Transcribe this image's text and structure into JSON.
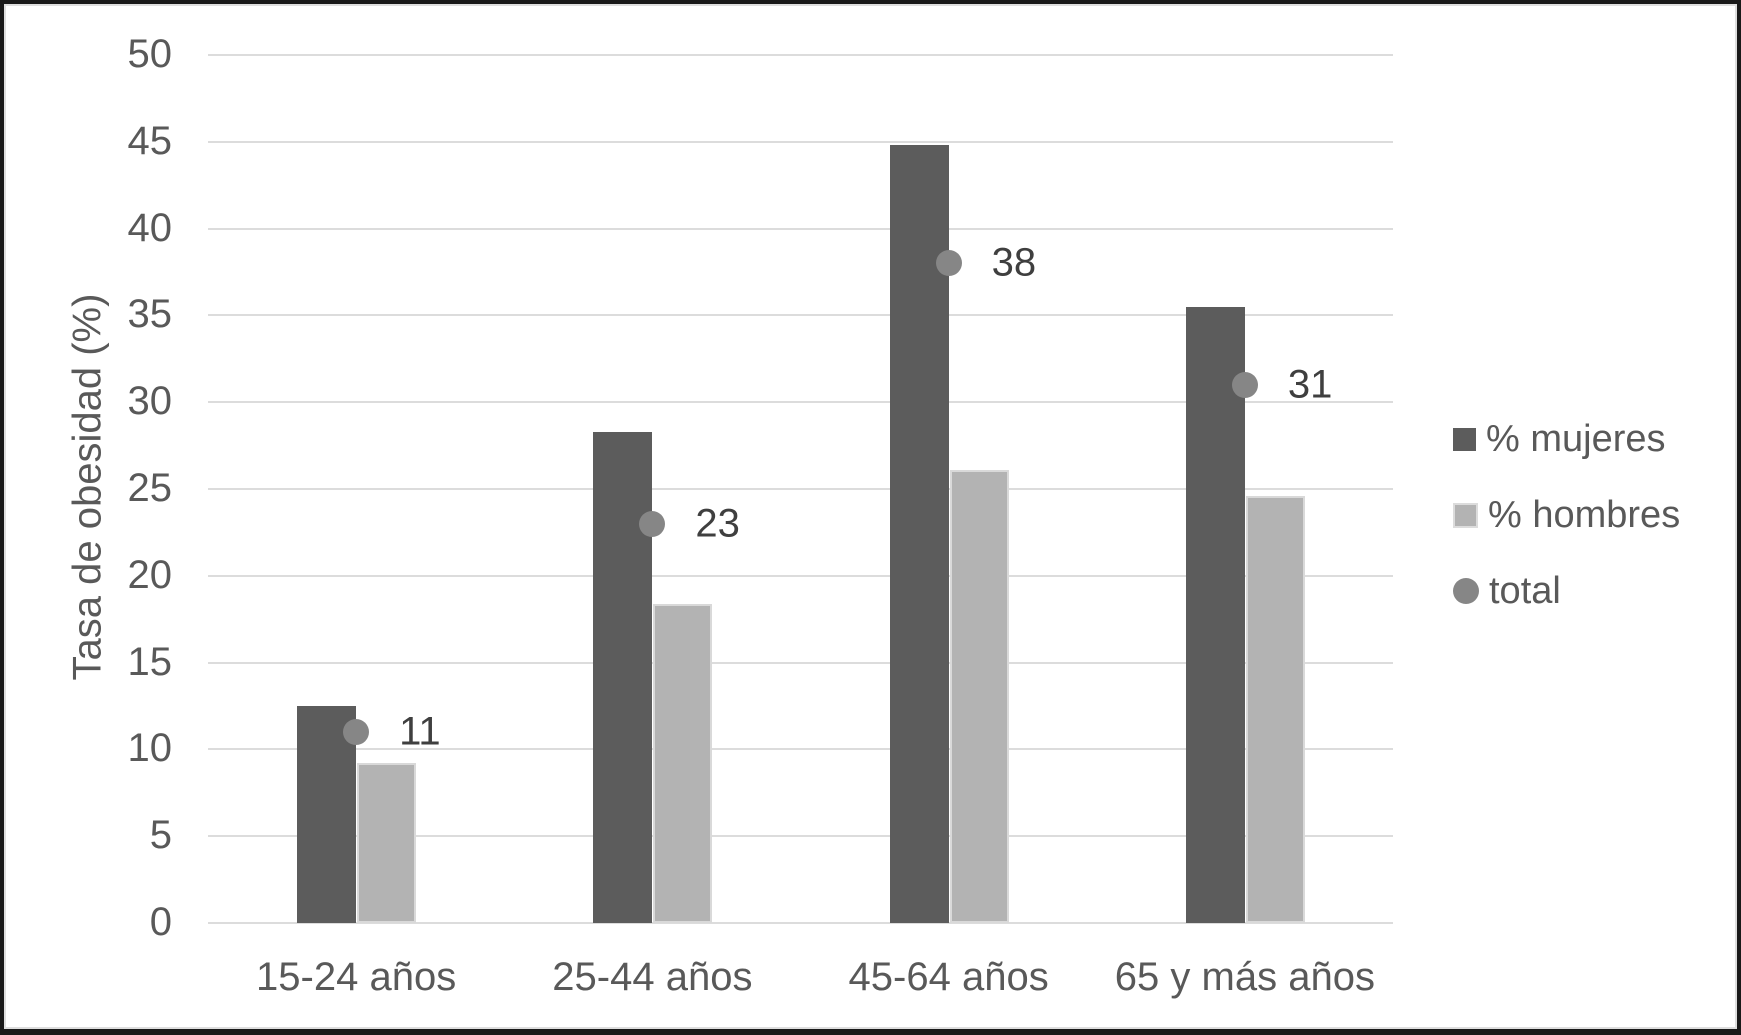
{
  "chart_data": {
    "type": "bar",
    "title": "",
    "xlabel": "",
    "ylabel": "Tasa de obesidad (%)",
    "ylim": [
      0,
      50
    ],
    "ytick_step": 5,
    "grid": true,
    "categories": [
      "15-24 años",
      "25-44 años",
      "45-64 años",
      "65 y más años"
    ],
    "series": [
      {
        "name": "% mujeres",
        "type": "bar",
        "color": "#5c5c5c",
        "values": [
          12.5,
          28.3,
          44.8,
          35.5
        ]
      },
      {
        "name": "% hombres",
        "type": "bar",
        "color": "#b3b3b3",
        "border_color": "#d9d9d9",
        "values": [
          9.2,
          18.4,
          26.1,
          24.6
        ]
      },
      {
        "name": "total",
        "type": "scatter",
        "color": "#868686",
        "values": [
          11,
          23,
          38,
          31
        ],
        "data_labels": [
          "11",
          "23",
          "38",
          "31"
        ]
      }
    ],
    "legend": {
      "position": "right",
      "entries": [
        "% mujeres",
        "% hombres",
        "total"
      ]
    },
    "styles": {
      "axis_text_color": "#595959",
      "data_label_color": "#3f3f3f",
      "gridline_color": "#dcdcdc",
      "background": "#ffffff",
      "frame_border_color": "#191919"
    }
  }
}
